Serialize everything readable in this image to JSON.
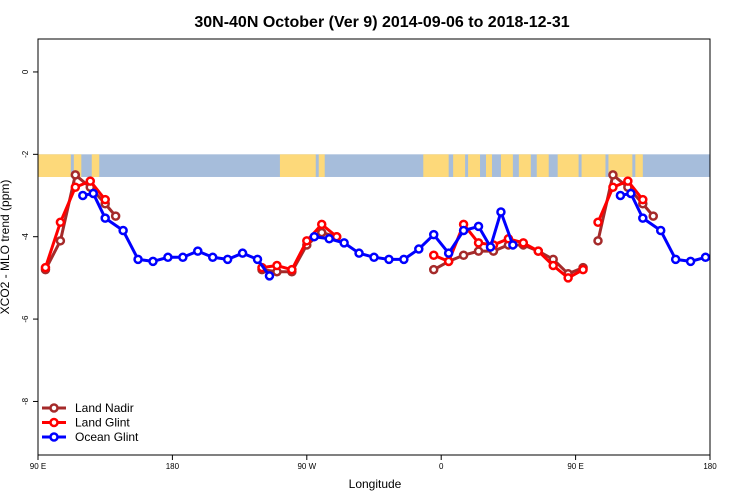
{
  "chart_data": {
    "type": "line",
    "title": "30N-40N October (Ver 9)   2014-09-06 to 2018-12-31",
    "xlabel": "Longitude",
    "ylabel": "XCO2 - MLO trend (ppm)",
    "xlim": [
      0,
      450
    ],
    "ylim": [
      -9.3,
      0.8
    ],
    "x_ticks": [
      {
        "value": 0,
        "label": "90 E"
      },
      {
        "value": 90,
        "label": "180"
      },
      {
        "value": 180,
        "label": "90 W"
      },
      {
        "value": 270,
        "label": "0"
      },
      {
        "value": 360,
        "label": "90 E"
      },
      {
        "value": 450,
        "label": "180"
      }
    ],
    "y_ticks": [
      {
        "value": 0,
        "label": "0"
      },
      {
        "value": -2,
        "label": "-2"
      },
      {
        "value": -4,
        "label": "-4"
      },
      {
        "value": -6,
        "label": "-6"
      },
      {
        "value": -8,
        "label": "-8"
      }
    ],
    "map_strip": {
      "y_top": -2.0,
      "y_bottom": -2.55,
      "ocean_color": "#a6bddb",
      "land_color": "#fdd97a"
    },
    "legend_position": "bottom-left",
    "series": [
      {
        "name": "Land Nadir",
        "color": "#a52a2a",
        "segments": [
          {
            "x": [
              5,
              15,
              25,
              35,
              45,
              52
            ],
            "y": [
              -4.8,
              -4.1,
              -2.5,
              -2.8,
              -3.2,
              -3.5
            ]
          },
          {
            "x": [
              150,
              160,
              170,
              180,
              190,
              200
            ],
            "y": [
              -4.8,
              -4.85,
              -4.85,
              -4.2,
              -3.9,
              -4.0
            ]
          },
          {
            "x": [
              265,
              275,
              285,
              295,
              305,
              315,
              325,
              335,
              345,
              355,
              365
            ],
            "y": [
              -4.8,
              -4.6,
              -4.45,
              -4.35,
              -4.35,
              -4.2,
              -4.2,
              -4.35,
              -4.55,
              -4.9,
              -4.75
            ]
          },
          {
            "x": [
              375,
              385,
              395,
              405,
              412
            ],
            "y": [
              -4.1,
              -2.5,
              -2.8,
              -3.2,
              -3.5
            ]
          }
        ]
      },
      {
        "name": "Land Glint",
        "color": "#ff0000",
        "segments": [
          {
            "x": [
              5,
              15,
              25,
              35,
              45
            ],
            "y": [
              -4.75,
              -3.65,
              -2.8,
              -2.65,
              -3.1
            ]
          },
          {
            "x": [
              150,
              160,
              170,
              180,
              190,
              200
            ],
            "y": [
              -4.75,
              -4.7,
              -4.8,
              -4.1,
              -3.7,
              -4.0
            ]
          },
          {
            "x": [
              265,
              275,
              285,
              295,
              305,
              315,
              325,
              335,
              345,
              355,
              365
            ],
            "y": [
              -4.45,
              -4.6,
              -3.7,
              -4.15,
              -4.2,
              -4.05,
              -4.15,
              -4.35,
              -4.7,
              -5.0,
              -4.8
            ]
          },
          {
            "x": [
              375,
              385,
              395,
              405
            ],
            "y": [
              -3.65,
              -2.8,
              -2.65,
              -3.1
            ]
          }
        ]
      },
      {
        "name": "Ocean Glint",
        "color": "#0000ff",
        "segments": [
          {
            "x": [
              30,
              37,
              45,
              57,
              67,
              77,
              87,
              97,
              107,
              117,
              127,
              137,
              147,
              155
            ],
            "y": [
              -3.0,
              -2.95,
              -3.55,
              -3.85,
              -4.55,
              -4.6,
              -4.5,
              -4.5,
              -4.35,
              -4.5,
              -4.55,
              -4.4,
              -4.55,
              -4.95
            ]
          },
          {
            "x": [
              185,
              195,
              205,
              215,
              225,
              235,
              245,
              255,
              265,
              275,
              285,
              295,
              303,
              310,
              318
            ],
            "y": [
              -4.0,
              -4.05,
              -4.15,
              -4.4,
              -4.5,
              -4.55,
              -4.55,
              -4.3,
              -3.95,
              -4.4,
              -3.85,
              -3.75,
              -4.25,
              -3.4,
              -4.2
            ]
          },
          {
            "x": [
              390,
              397,
              405,
              417,
              427,
              437,
              447
            ],
            "y": [
              -3.0,
              -2.95,
              -3.55,
              -3.85,
              -4.55,
              -4.6,
              -4.5
            ]
          }
        ]
      }
    ]
  }
}
